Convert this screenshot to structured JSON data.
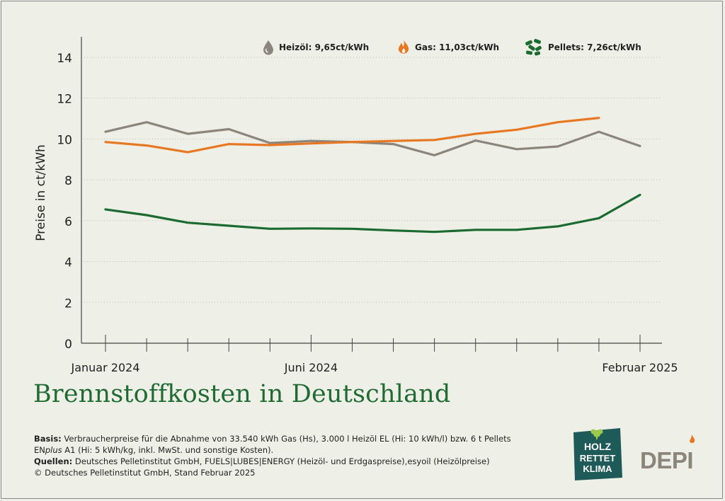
{
  "chart_data": {
    "type": "line",
    "title": "Brennstoffkosten in Deutschland",
    "ylabel": "Preise in ct/kWh",
    "xlabel": "",
    "ylim": [
      0,
      15
    ],
    "yticks": [
      0,
      2,
      4,
      6,
      8,
      10,
      12,
      14
    ],
    "grid": "horizontal dotted",
    "legend_position": "top",
    "x": [
      "2024-01",
      "2024-02",
      "2024-03",
      "2024-04",
      "2024-05",
      "2024-06",
      "2024-07",
      "2024-08",
      "2024-09",
      "2024-10",
      "2024-11",
      "2024-12",
      "2025-01",
      "2025-02"
    ],
    "xtick_labels": [
      {
        "at": "2024-01",
        "label": "Januar 2024"
      },
      {
        "at": "2024-06",
        "label": "Juni 2024"
      },
      {
        "at": "2025-02",
        "label": "Februar 2025"
      }
    ],
    "series": [
      {
        "name": "Heizöl",
        "color": "#8b857b",
        "icon": "oil-drop-icon",
        "values": [
          10.35,
          10.82,
          10.25,
          10.48,
          9.8,
          9.9,
          9.85,
          9.75,
          9.2,
          9.92,
          9.5,
          9.63,
          10.35,
          9.65
        ]
      },
      {
        "name": "Gas",
        "color": "#e87722",
        "icon": "flame-icon",
        "values": [
          9.85,
          9.68,
          9.35,
          9.75,
          9.7,
          9.78,
          9.85,
          9.9,
          9.95,
          10.25,
          10.45,
          10.82,
          11.03,
          null
        ]
      },
      {
        "name": "Pellets",
        "color": "#1b6b30",
        "icon": "pellets-icon",
        "values": [
          6.55,
          6.27,
          5.9,
          5.75,
          5.6,
          5.62,
          5.6,
          5.52,
          5.45,
          5.55,
          5.55,
          5.72,
          6.12,
          7.26
        ]
      }
    ]
  },
  "legend": [
    {
      "label": "Heizöl: 9,65ct/kWh",
      "icon": "oil-drop-icon",
      "color": "#8b857b"
    },
    {
      "label": "Gas: 11,03ct/kWh",
      "icon": "flame-icon",
      "color": "#e87722"
    },
    {
      "label": "Pellets: 7,26ct/kWh",
      "icon": "pellets-icon",
      "color": "#1b6b30"
    }
  ],
  "headline": "Brennstoffkosten in Deutschland",
  "notes": {
    "basis_label": "Basis:",
    "basis_text_1": " Verbraucherpreise für die Abnahme von 33.540 kWh Gas (Hs), 3.000 l Heizöl EL (Hi: 10 kWh/l) bzw. 6 t Pellets",
    "basis_en": "EN",
    "basis_plus": "plus",
    "basis_text_2": " A1 (Hi: 5 kWh/kg, inkl. MwSt. und sonstige Kosten).",
    "sources_label": "Quellen:",
    "sources_text": " Deutsches Pelletinstitut GmbH, FUELS|LUBES|ENERGY (Heizöl- und Erdgaspreise),esyoil (Heizölpreise)",
    "copyright": "© Deutsches Pelletinstitut GmbH, Stand Februar 2025"
  },
  "logos": {
    "holz": [
      "HOLZ",
      "RETTET",
      "KLIMA"
    ],
    "depi": "DEPI"
  },
  "colors": {
    "background": "#eef0e8",
    "headline": "#1f6b32",
    "holz_logo_bg": "#1d5a58",
    "depi_gray": "#8b857b",
    "depi_flame": "#e87722"
  }
}
